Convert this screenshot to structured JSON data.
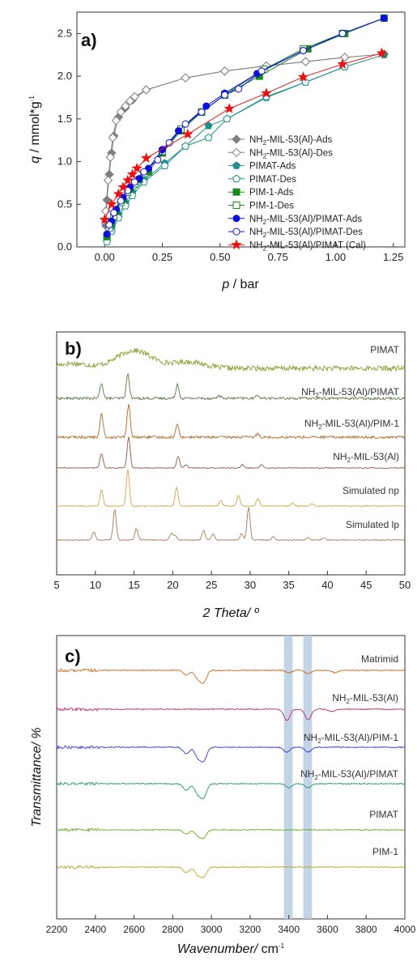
{
  "chart_data": [
    {
      "panel_label": "a)",
      "type": "scatter",
      "xlabel_italic": "p",
      "xlabel_rest": " / bar",
      "ylabel_italic": "q",
      "ylabel_rest": " / mmol*g",
      "ylabel_sup": "-1",
      "xlim": [
        -0.12,
        1.3
      ],
      "ylim": [
        0,
        2.75
      ],
      "xticks": [
        "0.00",
        "0.25",
        "0.50",
        "0.75",
        "1.00",
        "1.25"
      ],
      "xtick_values": [
        0,
        0.25,
        0.5,
        0.75,
        1.0,
        1.25
      ],
      "yticks": [
        "0.0",
        "0.5",
        "1.0",
        "1.5",
        "2.0",
        "2.5"
      ],
      "ytick_values": [
        0,
        0.5,
        1.0,
        1.5,
        2.0,
        2.5
      ],
      "legend_position": "bottom-right",
      "series": [
        {
          "name_pre": "NH",
          "name_sub": "2",
          "name_post": "-MIL-53(Al)-Ads",
          "marker": "diamond",
          "filled": true,
          "color": "#7f7f7f",
          "x": [
            0.005,
            0.01,
            0.02,
            0.03,
            0.04,
            0.06,
            0.09,
            0.12,
            0.18,
            0.35,
            0.52,
            0.7,
            0.87,
            1.04,
            1.21
          ],
          "y": [
            0.25,
            0.55,
            0.85,
            1.1,
            1.3,
            1.52,
            1.63,
            1.72,
            1.84,
            1.98,
            2.06,
            2.12,
            2.17,
            2.22,
            2.26
          ]
        },
        {
          "name_pre": "NH",
          "name_sub": "2",
          "name_post": "-MIL-53(Al)-Des",
          "marker": "diamond",
          "filled": false,
          "color": "#7f7f7f",
          "x": [
            0.005,
            0.015,
            0.025,
            0.035,
            0.05,
            0.07,
            0.09,
            0.11,
            0.13,
            0.18,
            0.35,
            0.52,
            0.7,
            0.87,
            1.04
          ],
          "y": [
            0.42,
            0.78,
            1.05,
            1.28,
            1.48,
            1.58,
            1.65,
            1.71,
            1.76,
            1.84,
            1.98,
            2.06,
            2.12,
            2.17,
            2.22
          ]
        },
        {
          "name": "PIMAT-Ads",
          "marker": "pentagon",
          "filled": true,
          "color": "#1f8f8a",
          "x": [
            0.01,
            0.03,
            0.06,
            0.09,
            0.12,
            0.17,
            0.26,
            0.35,
            0.45,
            0.53,
            0.7,
            0.87,
            1.04,
            1.21
          ],
          "y": [
            0.1,
            0.22,
            0.38,
            0.52,
            0.64,
            0.78,
            0.98,
            1.18,
            1.42,
            1.5,
            1.75,
            1.93,
            2.11,
            2.25
          ]
        },
        {
          "name": "PIMAT-Des",
          "marker": "pentagon",
          "filled": false,
          "color": "#1f8f8a",
          "x": [
            0.01,
            0.03,
            0.06,
            0.09,
            0.12,
            0.17,
            0.26,
            0.35,
            0.45,
            0.53,
            0.7,
            0.87,
            1.04
          ],
          "y": [
            0.06,
            0.18,
            0.34,
            0.48,
            0.6,
            0.76,
            0.95,
            1.18,
            1.28,
            1.5,
            1.76,
            1.93,
            2.11
          ]
        },
        {
          "name": "PIM-1-Ads",
          "marker": "square",
          "filled": true,
          "color": "#1a8a1a",
          "x": [
            0.01,
            0.03,
            0.05,
            0.08,
            0.11,
            0.15,
            0.19,
            0.25,
            0.33,
            0.42,
            0.52,
            0.67,
            0.88,
            1.04,
            1.21
          ],
          "y": [
            0.12,
            0.28,
            0.42,
            0.56,
            0.68,
            0.79,
            0.88,
            1.1,
            1.36,
            1.58,
            1.78,
            2.0,
            2.32,
            2.5,
            2.68
          ]
        },
        {
          "name": "PIM-1-Des",
          "marker": "square",
          "filled": false,
          "color": "#1a8a1a",
          "x": [
            0.02,
            0.04,
            0.07,
            0.1,
            0.13,
            0.17,
            0.25,
            0.33,
            0.42,
            0.52,
            0.69,
            0.86,
            1.03
          ],
          "y": [
            0.22,
            0.36,
            0.52,
            0.64,
            0.74,
            0.86,
            1.12,
            1.38,
            1.58,
            1.78,
            2.08,
            2.32,
            2.5
          ]
        },
        {
          "name_pre": "NH",
          "name_sub": "2",
          "name_post": "-MIL-53(Al)/PIMAT-Ads",
          "marker": "circle",
          "filled": true,
          "color": "#1010dd",
          "x": [
            0.01,
            0.03,
            0.05,
            0.08,
            0.11,
            0.15,
            0.19,
            0.25,
            0.32,
            0.44,
            0.52,
            0.66,
            0.86,
            1.03,
            1.21
          ],
          "y": [
            0.15,
            0.3,
            0.44,
            0.58,
            0.7,
            0.8,
            0.92,
            1.14,
            1.36,
            1.65,
            1.8,
            2.03,
            2.3,
            2.5,
            2.68
          ]
        },
        {
          "name_pre": "NH",
          "name_sub": "2",
          "name_post": "-MIL-53(Al)/PIMAT-Des",
          "marker": "circle",
          "filled": false,
          "color": "#1010dd",
          "x": [
            0.02,
            0.04,
            0.07,
            0.1,
            0.13,
            0.17,
            0.23,
            0.28,
            0.35,
            0.42,
            0.52,
            0.58,
            0.68,
            0.86,
            1.03
          ],
          "y": [
            0.26,
            0.4,
            0.54,
            0.66,
            0.76,
            0.88,
            1.02,
            1.22,
            1.44,
            1.58,
            1.78,
            1.85,
            2.06,
            2.3,
            2.5
          ]
        },
        {
          "name_pre": "NH",
          "name_sub": "2",
          "name_post": "-MIL-53(Al)/PIMAT (Cal)",
          "marker": "star",
          "filled": true,
          "color": "#ee1111",
          "x": [
            0.0,
            0.03,
            0.06,
            0.08,
            0.1,
            0.12,
            0.14,
            0.18,
            0.36,
            0.54,
            0.7,
            0.86,
            1.03,
            1.2
          ],
          "y": [
            0.32,
            0.5,
            0.62,
            0.7,
            0.78,
            0.85,
            0.92,
            1.04,
            1.32,
            1.62,
            1.8,
            1.99,
            2.14,
            2.27
          ]
        }
      ]
    },
    {
      "panel_label": "b)",
      "type": "line",
      "xlabel": "2 Theta/ º",
      "xlim": [
        5,
        50
      ],
      "xticks": [
        "5",
        "10",
        "15",
        "20",
        "25",
        "30",
        "35",
        "40",
        "45",
        "50"
      ],
      "xtick_values": [
        5,
        10,
        15,
        20,
        25,
        30,
        35,
        40,
        45,
        50
      ],
      "traces": [
        {
          "label": "PIMAT",
          "color": "#8a9a2a",
          "peaks": [],
          "amorphous": true
        },
        {
          "label_pre": "NH",
          "label_sub": "2",
          "label_post": "-MIL-53(Al)/PIMAT",
          "color": "#5e7a4a",
          "peaks": [
            [
              10.8,
              0.55
            ],
            [
              14.2,
              0.85
            ],
            [
              20.6,
              0.5
            ],
            [
              26,
              0.1
            ],
            [
              31,
              0.12
            ]
          ]
        },
        {
          "label_pre": "NH",
          "label_sub": "2",
          "label_post": "-MIL-53(Al)/PIM-1",
          "color": "#a86a2a",
          "peaks": [
            [
              10.8,
              0.65
            ],
            [
              14.3,
              0.9
            ],
            [
              20.6,
              0.35
            ],
            [
              31,
              0.1
            ]
          ]
        },
        {
          "label_pre": "NH",
          "label_sub": "2",
          "label_post": "-MIL-53(Al)",
          "color": "#8a5a4a",
          "peaks": [
            [
              10.8,
              0.45
            ],
            [
              14.3,
              0.95
            ],
            [
              20.7,
              0.35
            ],
            [
              21.7,
              0.1
            ],
            [
              29,
              0.1
            ],
            [
              31.5,
              0.1
            ]
          ]
        },
        {
          "label": "Simulated np",
          "color": "#c8a84a",
          "peaks": [
            [
              10.8,
              0.45
            ],
            [
              14.2,
              1.0
            ],
            [
              20.5,
              0.5
            ],
            [
              26.2,
              0.15
            ],
            [
              28.5,
              0.3
            ],
            [
              31,
              0.2
            ],
            [
              35.5,
              0.08
            ],
            [
              38,
              0.06
            ]
          ]
        },
        {
          "label": "Simulated lp",
          "color": "#a07a5a",
          "peaks": [
            [
              9.8,
              0.25
            ],
            [
              12.5,
              0.95
            ],
            [
              15.3,
              0.35
            ],
            [
              19.8,
              0.2
            ],
            [
              20.3,
              0.15
            ],
            [
              24,
              0.3
            ],
            [
              25.2,
              0.2
            ],
            [
              28.9,
              0.2
            ],
            [
              29.8,
              1.0
            ],
            [
              33,
              0.1
            ],
            [
              37.5,
              0.08
            ],
            [
              39.5,
              0.08
            ]
          ]
        }
      ]
    },
    {
      "panel_label": "c)",
      "type": "line",
      "xlabel_italic": "Wavenumber/",
      "xlabel_rest": " cm",
      "xlabel_sup": "-1",
      "ylabel": "Transmittance/ %",
      "xlim": [
        2200,
        4000
      ],
      "xticks": [
        "2200",
        "2400",
        "2600",
        "2800",
        "3000",
        "3200",
        "3400",
        "3600",
        "3800",
        "4000"
      ],
      "xtick_values": [
        2200,
        2400,
        2600,
        2800,
        3000,
        3200,
        3400,
        3600,
        3800,
        4000
      ],
      "highlight_bands": [
        [
          3375,
          3420
        ],
        [
          3475,
          3520
        ]
      ],
      "highlight_color": "#b8cde3",
      "traces": [
        {
          "label": "Matrimid",
          "color": "#c86a1a",
          "bands": [
            [
              2870,
              6
            ],
            [
              2930,
              10
            ],
            [
              2960,
              14
            ],
            [
              3400,
              3
            ],
            [
              3500,
              4
            ],
            [
              3640,
              3
            ]
          ]
        },
        {
          "label_pre": "NH",
          "label_sub": "2",
          "label_post": "-MIL-53(Al)",
          "color": "#c02a6a",
          "bands": [
            [
              3390,
              14
            ],
            [
              3500,
              13
            ],
            [
              3620,
              3
            ]
          ]
        },
        {
          "label_pre": "NH",
          "label_sub": "2",
          "label_post": "-MIL-53(Al)/PIM-1",
          "color": "#2a3ad0",
          "bands": [
            [
              2870,
              8
            ],
            [
              2930,
              12
            ],
            [
              2960,
              16
            ],
            [
              3390,
              6
            ],
            [
              3500,
              6
            ]
          ]
        },
        {
          "label_pre": "NH",
          "label_sub": "2",
          "label_post": "-MIL-53(Al)/PIMAT",
          "color": "#1a9a6a",
          "bands": [
            [
              2870,
              8
            ],
            [
              2930,
              12
            ],
            [
              2960,
              16
            ],
            [
              3400,
              5
            ],
            [
              3500,
              5
            ]
          ]
        },
        {
          "label": "PIMAT",
          "color": "#6aaa2a",
          "bands": [
            [
              2870,
              5
            ],
            [
              2930,
              7
            ],
            [
              2960,
              9
            ]
          ]
        },
        {
          "label": "PIM-1",
          "color": "#b0a82a",
          "bands": [
            [
              2870,
              7
            ],
            [
              2930,
              9
            ],
            [
              2960,
              11
            ]
          ]
        }
      ]
    }
  ]
}
